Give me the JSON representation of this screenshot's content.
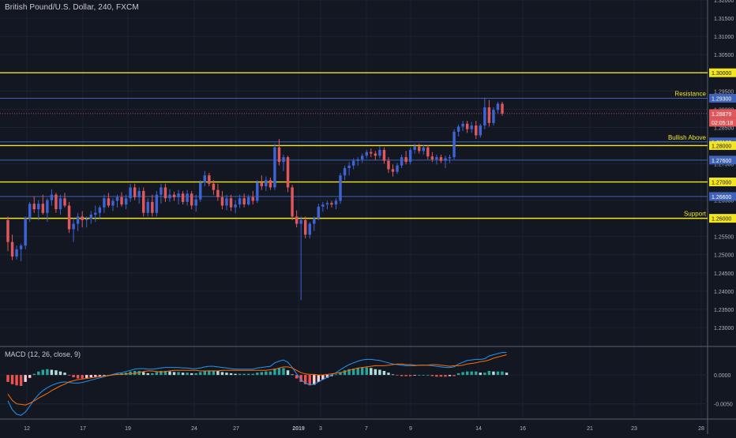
{
  "header": {
    "title": "British Pound/U.S. Dollar, 240, FXCM"
  },
  "macd_panel": {
    "title": "MACD (12, 26, close, 9)"
  },
  "chart_data": {
    "type": "candlestick",
    "symbol": "GBP/USD",
    "timeframe": "240",
    "ylim": [
      1.225,
      1.32
    ],
    "y_ticks": [
      "1.32000",
      "1.31500",
      "1.31000",
      "1.30500",
      "1.30000",
      "1.29500",
      "1.29000",
      "1.28500",
      "1.28000",
      "1.27500",
      "1.27000",
      "1.26500",
      "1.26000",
      "1.25500",
      "1.25000",
      "1.24500",
      "1.24000",
      "1.23500",
      "1.23000"
    ],
    "x_ticks": [
      "12",
      "17",
      "19",
      "24",
      "27",
      "2019",
      "3",
      "7",
      "9",
      "14",
      "16",
      "21",
      "23",
      "28"
    ],
    "current_price": "1.28879",
    "countdown": "02:05:18",
    "colors": {
      "up": "#3d63d4",
      "down": "#e0585c",
      "horizontal_line": "#f3e621",
      "blue_line": "#3f63b8",
      "background": "#131722"
    },
    "horizontal_levels": [
      {
        "value": 1.3,
        "label": "1.30000",
        "color": "#f3e621",
        "annotation": ""
      },
      {
        "value": 1.293,
        "label": "1.29300",
        "color": "#3f63b8",
        "annotation": "Resistance"
      },
      {
        "value": 1.281,
        "label": "1.28100",
        "color": "#3f63b8",
        "annotation": "Bullish Above"
      },
      {
        "value": 1.28,
        "label": "1.28000",
        "color": "#f3e621",
        "annotation": ""
      },
      {
        "value": 1.276,
        "label": "1.27600",
        "color": "#3f63b8",
        "annotation": ""
      },
      {
        "value": 1.27,
        "label": "1.27000",
        "color": "#f3e621",
        "annotation": ""
      },
      {
        "value": 1.266,
        "label": "1.26600",
        "color": "#3f63b8",
        "annotation": ""
      },
      {
        "value": 1.26,
        "label": "1.26000",
        "color": "#f3e621",
        "annotation": "Support"
      }
    ],
    "candles": [
      {
        "o": 1.2595,
        "h": 1.2605,
        "l": 1.251,
        "c": 1.2535
      },
      {
        "o": 1.2535,
        "h": 1.2555,
        "l": 1.2485,
        "c": 1.2495
      },
      {
        "o": 1.2495,
        "h": 1.2525,
        "l": 1.2487,
        "c": 1.2515
      },
      {
        "o": 1.2515,
        "h": 1.253,
        "l": 1.2482,
        "c": 1.2525
      },
      {
        "o": 1.2525,
        "h": 1.2605,
        "l": 1.2515,
        "c": 1.26
      },
      {
        "o": 1.26,
        "h": 1.2645,
        "l": 1.259,
        "c": 1.264
      },
      {
        "o": 1.264,
        "h": 1.266,
        "l": 1.2615,
        "c": 1.2625
      },
      {
        "o": 1.2625,
        "h": 1.265,
        "l": 1.2595,
        "c": 1.264
      },
      {
        "o": 1.264,
        "h": 1.2665,
        "l": 1.261,
        "c": 1.2615
      },
      {
        "o": 1.2615,
        "h": 1.2655,
        "l": 1.259,
        "c": 1.265
      },
      {
        "o": 1.265,
        "h": 1.268,
        "l": 1.2635,
        "c": 1.2665
      },
      {
        "o": 1.2665,
        "h": 1.267,
        "l": 1.2615,
        "c": 1.2625
      },
      {
        "o": 1.2625,
        "h": 1.2665,
        "l": 1.261,
        "c": 1.2655
      },
      {
        "o": 1.2655,
        "h": 1.267,
        "l": 1.263,
        "c": 1.2635
      },
      {
        "o": 1.2635,
        "h": 1.2645,
        "l": 1.256,
        "c": 1.257
      },
      {
        "o": 1.257,
        "h": 1.26,
        "l": 1.2535,
        "c": 1.2585
      },
      {
        "o": 1.2585,
        "h": 1.2615,
        "l": 1.2565,
        "c": 1.2605
      },
      {
        "o": 1.2605,
        "h": 1.262,
        "l": 1.2575,
        "c": 1.2595
      },
      {
        "o": 1.2595,
        "h": 1.2605,
        "l": 1.2575,
        "c": 1.2598
      },
      {
        "o": 1.2598,
        "h": 1.262,
        "l": 1.2585,
        "c": 1.261
      },
      {
        "o": 1.261,
        "h": 1.2635,
        "l": 1.259,
        "c": 1.2615
      },
      {
        "o": 1.2615,
        "h": 1.2635,
        "l": 1.26,
        "c": 1.263
      },
      {
        "o": 1.263,
        "h": 1.2665,
        "l": 1.2615,
        "c": 1.2655
      },
      {
        "o": 1.2655,
        "h": 1.267,
        "l": 1.263,
        "c": 1.2635
      },
      {
        "o": 1.2635,
        "h": 1.2655,
        "l": 1.262,
        "c": 1.2648
      },
      {
        "o": 1.2648,
        "h": 1.2665,
        "l": 1.263,
        "c": 1.2658
      },
      {
        "o": 1.2658,
        "h": 1.2672,
        "l": 1.2632,
        "c": 1.2638
      },
      {
        "o": 1.2638,
        "h": 1.2665,
        "l": 1.2625,
        "c": 1.2655
      },
      {
        "o": 1.2655,
        "h": 1.2695,
        "l": 1.2645,
        "c": 1.2685
      },
      {
        "o": 1.2685,
        "h": 1.2695,
        "l": 1.265,
        "c": 1.2658
      },
      {
        "o": 1.2658,
        "h": 1.2685,
        "l": 1.264,
        "c": 1.2675
      },
      {
        "o": 1.2675,
        "h": 1.2685,
        "l": 1.2605,
        "c": 1.2615
      },
      {
        "o": 1.2615,
        "h": 1.2655,
        "l": 1.2605,
        "c": 1.2645
      },
      {
        "o": 1.2645,
        "h": 1.2665,
        "l": 1.2605,
        "c": 1.2615
      },
      {
        "o": 1.2615,
        "h": 1.2675,
        "l": 1.2605,
        "c": 1.2665
      },
      {
        "o": 1.2665,
        "h": 1.2695,
        "l": 1.264,
        "c": 1.2685
      },
      {
        "o": 1.2685,
        "h": 1.2695,
        "l": 1.2645,
        "c": 1.2655
      },
      {
        "o": 1.2655,
        "h": 1.268,
        "l": 1.2645,
        "c": 1.2665
      },
      {
        "o": 1.2665,
        "h": 1.2673,
        "l": 1.2648,
        "c": 1.2658
      },
      {
        "o": 1.2658,
        "h": 1.2678,
        "l": 1.2638,
        "c": 1.2668
      },
      {
        "o": 1.2668,
        "h": 1.2675,
        "l": 1.2638,
        "c": 1.2645
      },
      {
        "o": 1.2645,
        "h": 1.2678,
        "l": 1.2635,
        "c": 1.2668
      },
      {
        "o": 1.2668,
        "h": 1.2675,
        "l": 1.2625,
        "c": 1.2635
      },
      {
        "o": 1.2635,
        "h": 1.2665,
        "l": 1.2618,
        "c": 1.2652
      },
      {
        "o": 1.2652,
        "h": 1.2705,
        "l": 1.2645,
        "c": 1.2698
      },
      {
        "o": 1.2698,
        "h": 1.273,
        "l": 1.2688,
        "c": 1.2718
      },
      {
        "o": 1.2718,
        "h": 1.2725,
        "l": 1.2688,
        "c": 1.2695
      },
      {
        "o": 1.2695,
        "h": 1.2705,
        "l": 1.2665,
        "c": 1.2678
      },
      {
        "o": 1.2678,
        "h": 1.2695,
        "l": 1.2648,
        "c": 1.2658
      },
      {
        "o": 1.2658,
        "h": 1.2675,
        "l": 1.2625,
        "c": 1.2635
      },
      {
        "o": 1.2635,
        "h": 1.2665,
        "l": 1.2622,
        "c": 1.2655
      },
      {
        "o": 1.2655,
        "h": 1.2665,
        "l": 1.262,
        "c": 1.263
      },
      {
        "o": 1.263,
        "h": 1.265,
        "l": 1.2615,
        "c": 1.2638
      },
      {
        "o": 1.2638,
        "h": 1.2665,
        "l": 1.2628,
        "c": 1.2655
      },
      {
        "o": 1.2655,
        "h": 1.2668,
        "l": 1.263,
        "c": 1.2638
      },
      {
        "o": 1.2638,
        "h": 1.2665,
        "l": 1.2635,
        "c": 1.2658
      },
      {
        "o": 1.2658,
        "h": 1.2675,
        "l": 1.2638,
        "c": 1.2648
      },
      {
        "o": 1.2648,
        "h": 1.2705,
        "l": 1.2642,
        "c": 1.2698
      },
      {
        "o": 1.2698,
        "h": 1.2718,
        "l": 1.2678,
        "c": 1.2688
      },
      {
        "o": 1.2688,
        "h": 1.2715,
        "l": 1.2675,
        "c": 1.2705
      },
      {
        "o": 1.2705,
        "h": 1.2712,
        "l": 1.2678,
        "c": 1.2685
      },
      {
        "o": 1.2685,
        "h": 1.2805,
        "l": 1.2678,
        "c": 1.2795
      },
      {
        "o": 1.2795,
        "h": 1.2818,
        "l": 1.2745,
        "c": 1.2755
      },
      {
        "o": 1.2755,
        "h": 1.2775,
        "l": 1.273,
        "c": 1.2768
      },
      {
        "o": 1.2768,
        "h": 1.2772,
        "l": 1.2672,
        "c": 1.2685
      },
      {
        "o": 1.2685,
        "h": 1.2692,
        "l": 1.2595,
        "c": 1.2605
      },
      {
        "o": 1.2605,
        "h": 1.2622,
        "l": 1.2575,
        "c": 1.2585
      },
      {
        "o": 1.2585,
        "h": 1.2605,
        "l": 1.2375,
        "c": 1.2595
      },
      {
        "o": 1.2595,
        "h": 1.2605,
        "l": 1.2545,
        "c": 1.2555
      },
      {
        "o": 1.2555,
        "h": 1.259,
        "l": 1.2545,
        "c": 1.2585
      },
      {
        "o": 1.2585,
        "h": 1.2605,
        "l": 1.2565,
        "c": 1.26
      },
      {
        "o": 1.26,
        "h": 1.264,
        "l": 1.2595,
        "c": 1.2632
      },
      {
        "o": 1.2632,
        "h": 1.2645,
        "l": 1.2618,
        "c": 1.2638
      },
      {
        "o": 1.2638,
        "h": 1.2648,
        "l": 1.2625,
        "c": 1.2642
      },
      {
        "o": 1.2642,
        "h": 1.2648,
        "l": 1.263,
        "c": 1.2638
      },
      {
        "o": 1.2638,
        "h": 1.2655,
        "l": 1.2625,
        "c": 1.2648
      },
      {
        "o": 1.2648,
        "h": 1.2725,
        "l": 1.264,
        "c": 1.2718
      },
      {
        "o": 1.2718,
        "h": 1.2745,
        "l": 1.2705,
        "c": 1.2738
      },
      {
        "o": 1.2738,
        "h": 1.2755,
        "l": 1.2718,
        "c": 1.2745
      },
      {
        "o": 1.2745,
        "h": 1.2765,
        "l": 1.2735,
        "c": 1.2758
      },
      {
        "o": 1.2758,
        "h": 1.2768,
        "l": 1.2745,
        "c": 1.2762
      },
      {
        "o": 1.2762,
        "h": 1.2778,
        "l": 1.2752,
        "c": 1.2772
      },
      {
        "o": 1.2772,
        "h": 1.2788,
        "l": 1.2765,
        "c": 1.2782
      },
      {
        "o": 1.2782,
        "h": 1.2792,
        "l": 1.2768,
        "c": 1.2778
      },
      {
        "o": 1.2778,
        "h": 1.2785,
        "l": 1.276,
        "c": 1.2772
      },
      {
        "o": 1.2772,
        "h": 1.2798,
        "l": 1.2765,
        "c": 1.2788
      },
      {
        "o": 1.2788,
        "h": 1.2795,
        "l": 1.275,
        "c": 1.2758
      },
      {
        "o": 1.2758,
        "h": 1.2768,
        "l": 1.2725,
        "c": 1.2735
      },
      {
        "o": 1.2735,
        "h": 1.2748,
        "l": 1.2715,
        "c": 1.2728
      },
      {
        "o": 1.2728,
        "h": 1.2752,
        "l": 1.2722,
        "c": 1.2745
      },
      {
        "o": 1.2745,
        "h": 1.2775,
        "l": 1.2738,
        "c": 1.2768
      },
      {
        "o": 1.2768,
        "h": 1.2785,
        "l": 1.2748,
        "c": 1.2755
      },
      {
        "o": 1.2755,
        "h": 1.2795,
        "l": 1.2748,
        "c": 1.2788
      },
      {
        "o": 1.2788,
        "h": 1.2805,
        "l": 1.2778,
        "c": 1.2798
      },
      {
        "o": 1.2798,
        "h": 1.2805,
        "l": 1.2778,
        "c": 1.2785
      },
      {
        "o": 1.2785,
        "h": 1.2802,
        "l": 1.2775,
        "c": 1.2795
      },
      {
        "o": 1.2795,
        "h": 1.2802,
        "l": 1.2762,
        "c": 1.277
      },
      {
        "o": 1.277,
        "h": 1.2782,
        "l": 1.2755,
        "c": 1.2762
      },
      {
        "o": 1.2762,
        "h": 1.2775,
        "l": 1.2748,
        "c": 1.2768
      },
      {
        "o": 1.2768,
        "h": 1.2775,
        "l": 1.2752,
        "c": 1.2758
      },
      {
        "o": 1.2758,
        "h": 1.2772,
        "l": 1.2738,
        "c": 1.2765
      },
      {
        "o": 1.2765,
        "h": 1.2775,
        "l": 1.2752,
        "c": 1.2768
      },
      {
        "o": 1.2768,
        "h": 1.2845,
        "l": 1.2762,
        "c": 1.2838
      },
      {
        "o": 1.2838,
        "h": 1.2858,
        "l": 1.2825,
        "c": 1.2852
      },
      {
        "o": 1.2852,
        "h": 1.2868,
        "l": 1.284,
        "c": 1.286
      },
      {
        "o": 1.286,
        "h": 1.2868,
        "l": 1.2835,
        "c": 1.2845
      },
      {
        "o": 1.2845,
        "h": 1.2865,
        "l": 1.2835,
        "c": 1.2855
      },
      {
        "o": 1.2855,
        "h": 1.2868,
        "l": 1.2818,
        "c": 1.2828
      },
      {
        "o": 1.2828,
        "h": 1.286,
        "l": 1.2822,
        "c": 1.2855
      },
      {
        "o": 1.2855,
        "h": 1.2932,
        "l": 1.2845,
        "c": 1.2905
      },
      {
        "o": 1.2905,
        "h": 1.2925,
        "l": 1.2852,
        "c": 1.2862
      },
      {
        "o": 1.2862,
        "h": 1.2905,
        "l": 1.2855,
        "c": 1.2898
      },
      {
        "o": 1.2898,
        "h": 1.292,
        "l": 1.2888,
        "c": 1.2915
      },
      {
        "o": 1.2915,
        "h": 1.292,
        "l": 1.2882,
        "c": 1.28879
      }
    ],
    "macd": {
      "ylim": [
        -0.0075,
        0.0048
      ],
      "y_ticks": [
        "0.0000",
        "-0.0050"
      ],
      "histogram": [
        -0.0012,
        -0.0016,
        -0.0018,
        -0.0019,
        -0.0012,
        -0.0005,
        0.0002,
        0.0006,
        0.0009,
        0.001,
        0.0009,
        0.0008,
        0.0006,
        0.0004,
        -0.0001,
        -0.0004,
        -0.0006,
        -0.0006,
        -0.0005,
        -0.0004,
        -0.0003,
        -0.0002,
        -0.0001,
        0,
        0.0001,
        0.0002,
        0.0003,
        0.0004,
        0.0006,
        0.0007,
        0.0007,
        0.0005,
        0.0003,
        0.0003,
        0.0005,
        0.0007,
        0.0007,
        0.0006,
        0.0005,
        0.0005,
        0.0004,
        0.0004,
        0.0003,
        0.0003,
        0.0005,
        0.0007,
        0.0008,
        0.0008,
        0.0007,
        0.0005,
        0.0004,
        0.0003,
        0.0002,
        0.0002,
        0.0002,
        0.0002,
        0.0002,
        0.0004,
        0.0005,
        0.0006,
        0.0006,
        0.0011,
        0.0012,
        0.0012,
        0.0008,
        0.0001,
        -0.0006,
        -0.0012,
        -0.0016,
        -0.0018,
        -0.0017,
        -0.0012,
        -0.0008,
        -0.0005,
        -0.0002,
        0.0001,
        0.0005,
        0.0008,
        0.001,
        0.0011,
        0.0012,
        0.0013,
        0.0013,
        0.0012,
        0.001,
        0.0009,
        0.0007,
        0.0004,
        0.0001,
        -0.0001,
        -0.0002,
        -0.0002,
        -0.0002,
        -0.0001,
        0,
        0,
        0,
        -0.0002,
        -0.0003,
        -0.0003,
        -0.0003,
        -0.0002,
        -0.0002,
        0.0003,
        0.0005,
        0.0006,
        0.0006,
        0.0006,
        0.0004,
        0.0004,
        0.0007,
        0.0006,
        0.0006,
        0.0006,
        0.0004
      ],
      "macd_line": [
        -0.0045,
        -0.006,
        -0.0068,
        -0.007,
        -0.0064,
        -0.0054,
        -0.0043,
        -0.0034,
        -0.0027,
        -0.0022,
        -0.0018,
        -0.0015,
        -0.0013,
        -0.0012,
        -0.0013,
        -0.0014,
        -0.0014,
        -0.0013,
        -0.0011,
        -0.0009,
        -0.0007,
        -0.0005,
        -0.0003,
        -0.0001,
        0.0001,
        0.0003,
        0.0004,
        0.0006,
        0.0008,
        0.001,
        0.0011,
        0.0011,
        0.001,
        0.001,
        0.0011,
        0.0012,
        0.0013,
        0.0013,
        0.0013,
        0.0013,
        0.0012,
        0.0012,
        0.0011,
        0.0011,
        0.0012,
        0.0014,
        0.0015,
        0.0015,
        0.0014,
        0.0013,
        0.0012,
        0.0011,
        0.001,
        0.001,
        0.001,
        0.001,
        0.001,
        0.0012,
        0.0013,
        0.0014,
        0.0015,
        0.0021,
        0.0024,
        0.0026,
        0.0022,
        0.0013,
        0.0002,
        -0.0008,
        -0.0014,
        -0.0017,
        -0.0016,
        -0.0012,
        -0.0008,
        -0.0004,
        0,
        0.0004,
        0.0009,
        0.0014,
        0.0018,
        0.0021,
        0.0024,
        0.0026,
        0.0027,
        0.0027,
        0.0026,
        0.0025,
        0.0023,
        0.0021,
        0.0019,
        0.0018,
        0.0017,
        0.0016,
        0.0016,
        0.0016,
        0.0017,
        0.0017,
        0.0017,
        0.0016,
        0.0015,
        0.0014,
        0.0013,
        0.0013,
        0.0014,
        0.0019,
        0.0022,
        0.0025,
        0.0026,
        0.0027,
        0.0027,
        0.0028,
        0.0033,
        0.0035,
        0.0037,
        0.0039,
        0.0039
      ],
      "signal_line": [
        -0.0033,
        -0.0044,
        -0.005,
        -0.0051,
        -0.0052,
        -0.0049,
        -0.0045,
        -0.004,
        -0.0036,
        -0.0032,
        -0.0027,
        -0.0023,
        -0.0019,
        -0.0016,
        -0.0012,
        -0.001,
        -0.0008,
        -0.0007,
        -0.0006,
        -0.0005,
        -0.0004,
        -0.0003,
        -0.0002,
        -0.0001,
        0,
        0.0001,
        0.0001,
        0.0002,
        0.0002,
        0.0003,
        0.0004,
        0.0006,
        0.0007,
        0.0007,
        0.0006,
        0.0005,
        0.0006,
        0.0007,
        0.0008,
        0.0008,
        0.0008,
        0.0008,
        0.0008,
        0.0008,
        0.0007,
        0.0007,
        0.0007,
        0.0007,
        0.0007,
        0.0008,
        0.0008,
        0.0008,
        0.0008,
        0.0008,
        0.0008,
        0.0008,
        0.0008,
        0.0008,
        0.0008,
        0.0008,
        0.0009,
        0.001,
        0.0012,
        0.0014,
        0.0014,
        0.0012,
        0.0008,
        0.0004,
        0.0002,
        0.0001,
        0.0001,
        0,
        0,
        0.0001,
        0.0002,
        0.0003,
        0.0004,
        0.0006,
        0.0008,
        0.001,
        0.0012,
        0.0013,
        0.0014,
        0.0015,
        0.0016,
        0.0016,
        0.0016,
        0.0017,
        0.0018,
        0.0019,
        0.0019,
        0.0018,
        0.0018,
        0.0017,
        0.0017,
        0.0017,
        0.0017,
        0.0018,
        0.0018,
        0.0017,
        0.0016,
        0.0015,
        0.0016,
        0.0016,
        0.0017,
        0.0019,
        0.002,
        0.0021,
        0.0023,
        0.0024,
        0.0026,
        0.0029,
        0.0031,
        0.0033,
        0.0035
      ]
    }
  }
}
